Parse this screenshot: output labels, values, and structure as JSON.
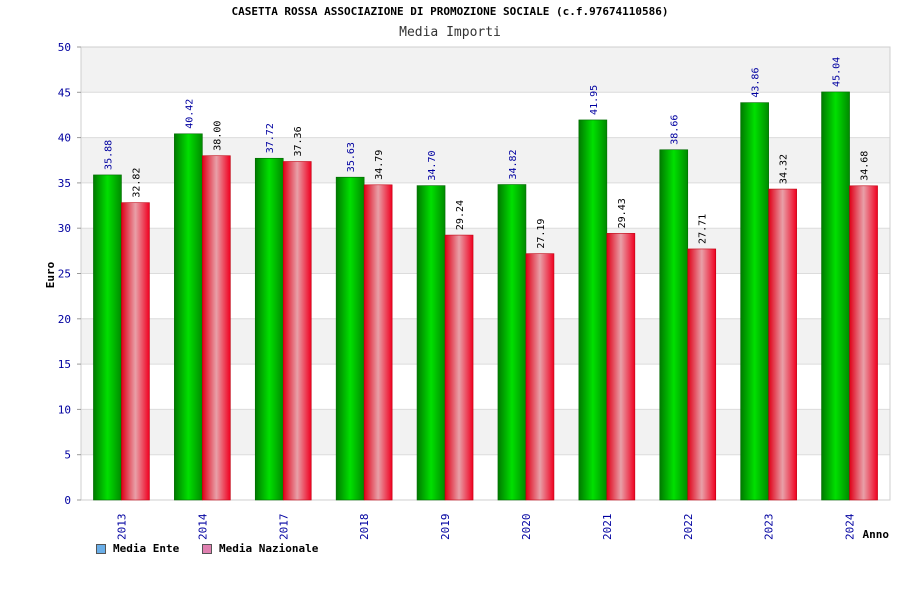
{
  "chart_data": {
    "type": "bar",
    "title": "CASETTA ROSSA ASSOCIAZIONE DI PROMOZIONE SOCIALE (c.f.97674110586)",
    "subtitle": "Media Importi",
    "xlabel": "Anno",
    "ylabel": "Euro",
    "ylim": [
      0,
      50
    ],
    "yticks": [
      0,
      5,
      10,
      15,
      20,
      25,
      30,
      35,
      40,
      45,
      50
    ],
    "grid": true,
    "legend_position": "bottom-left",
    "categories": [
      "2013",
      "2014",
      "2017",
      "2018",
      "2019",
      "2020",
      "2021",
      "2022",
      "2023",
      "2024"
    ],
    "series": [
      {
        "name": "Media Ente",
        "color": "#00b000",
        "legend_color": "#6aaee8",
        "values": [
          35.88,
          40.42,
          37.72,
          35.63,
          34.7,
          34.82,
          41.95,
          38.66,
          43.86,
          45.04
        ],
        "labels": [
          "35.88",
          "40.42",
          "37.72",
          "35.63",
          "34.70",
          "34.82",
          "41.95",
          "38.66",
          "43.86",
          "45.04"
        ]
      },
      {
        "name": "Media Nazionale",
        "color": "#f00020",
        "legend_color": "#e080b0",
        "values": [
          32.82,
          38.0,
          37.36,
          34.79,
          29.24,
          27.19,
          29.43,
          27.71,
          34.32,
          34.68
        ],
        "labels": [
          "32.82",
          "38.00",
          "37.36",
          "34.79",
          "29.24",
          "27.19",
          "29.43",
          "27.71",
          "34.32",
          "34.68"
        ]
      }
    ]
  }
}
